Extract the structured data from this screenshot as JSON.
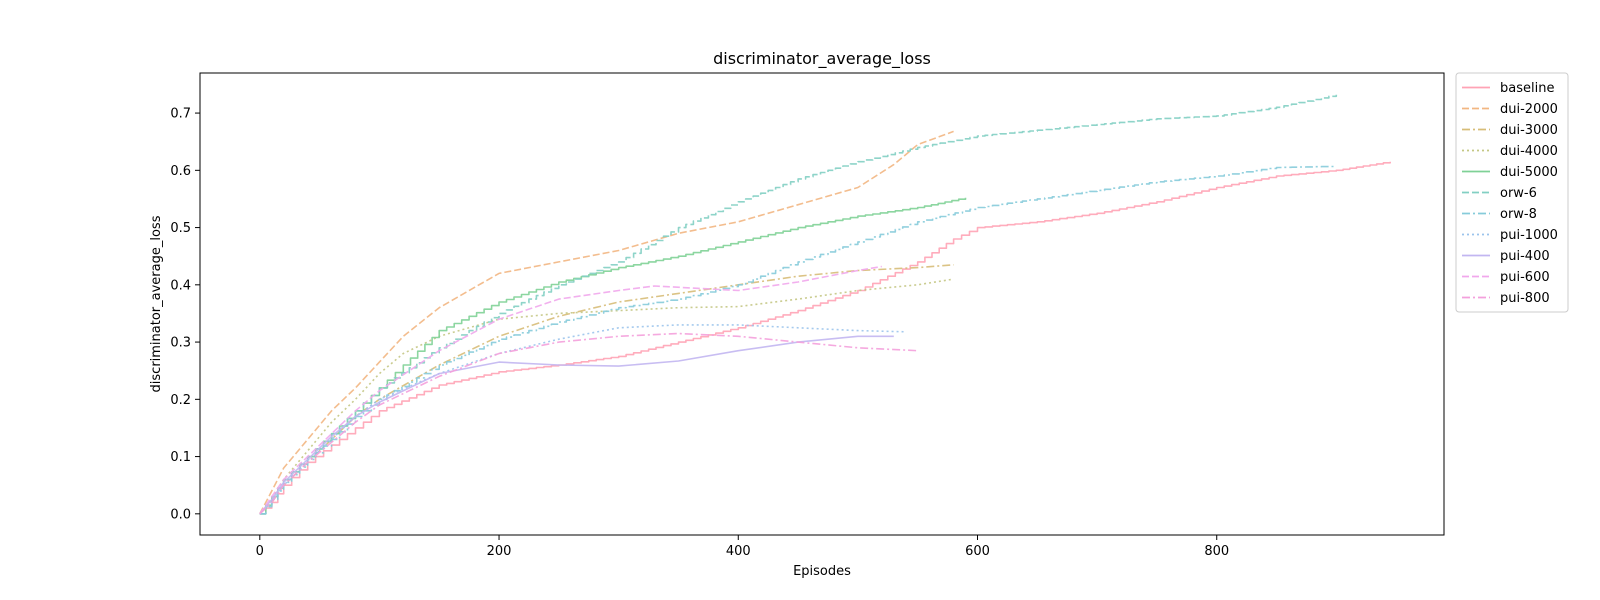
{
  "chart_data": {
    "type": "line",
    "title": "discriminator_average_loss",
    "xlabel": "Episodes",
    "ylabel": "discriminator_average_loss",
    "xlim": [
      -50,
      990
    ],
    "ylim": [
      -0.037,
      0.77
    ],
    "xticks": [
      0,
      200,
      400,
      600,
      800
    ],
    "xtick_labels": [
      "0",
      "200",
      "400",
      "600",
      "800"
    ],
    "yticks": [
      0.0,
      0.1,
      0.2,
      0.3,
      0.4,
      0.5,
      0.6,
      0.7
    ],
    "ytick_labels": [
      "0.0",
      "0.1",
      "0.2",
      "0.3",
      "0.4",
      "0.5",
      "0.6",
      "0.7"
    ],
    "grid": false,
    "legend_position": "outside-right-top",
    "series": [
      {
        "name": "baseline",
        "color": "#ffa3b5",
        "dash": "solid",
        "step": true,
        "points": [
          [
            0,
            0
          ],
          [
            10,
            0.02
          ],
          [
            20,
            0.05
          ],
          [
            40,
            0.09
          ],
          [
            60,
            0.12
          ],
          [
            80,
            0.15
          ],
          [
            100,
            0.18
          ],
          [
            150,
            0.225
          ],
          [
            200,
            0.248
          ],
          [
            250,
            0.26
          ],
          [
            300,
            0.275
          ],
          [
            350,
            0.3
          ],
          [
            400,
            0.325
          ],
          [
            450,
            0.355
          ],
          [
            500,
            0.39
          ],
          [
            550,
            0.44
          ],
          [
            580,
            0.48
          ],
          [
            600,
            0.5
          ],
          [
            650,
            0.51
          ],
          [
            700,
            0.525
          ],
          [
            750,
            0.545
          ],
          [
            800,
            0.57
          ],
          [
            850,
            0.59
          ],
          [
            900,
            0.6
          ],
          [
            945,
            0.615
          ]
        ]
      },
      {
        "name": "dui-2000",
        "color": "#f2b682",
        "dash": "dashed",
        "step": false,
        "points": [
          [
            0,
            0
          ],
          [
            10,
            0.04
          ],
          [
            20,
            0.08
          ],
          [
            40,
            0.13
          ],
          [
            60,
            0.18
          ],
          [
            80,
            0.22
          ],
          [
            100,
            0.265
          ],
          [
            120,
            0.31
          ],
          [
            150,
            0.36
          ],
          [
            200,
            0.42
          ],
          [
            250,
            0.44
          ],
          [
            300,
            0.46
          ],
          [
            350,
            0.49
          ],
          [
            400,
            0.51
          ],
          [
            450,
            0.54
          ],
          [
            500,
            0.57
          ],
          [
            530,
            0.61
          ],
          [
            550,
            0.645
          ],
          [
            580,
            0.668
          ]
        ]
      },
      {
        "name": "dui-3000",
        "color": "#d7bd78",
        "dash": "dashdot",
        "step": false,
        "points": [
          [
            0,
            0
          ],
          [
            10,
            0.02
          ],
          [
            20,
            0.05
          ],
          [
            40,
            0.09
          ],
          [
            60,
            0.13
          ],
          [
            80,
            0.17
          ],
          [
            100,
            0.2
          ],
          [
            150,
            0.26
          ],
          [
            200,
            0.31
          ],
          [
            250,
            0.345
          ],
          [
            300,
            0.37
          ],
          [
            350,
            0.385
          ],
          [
            400,
            0.4
          ],
          [
            450,
            0.415
          ],
          [
            500,
            0.425
          ],
          [
            550,
            0.43
          ],
          [
            580,
            0.435
          ]
        ]
      },
      {
        "name": "dui-4000",
        "color": "#c4c784",
        "dash": "dotted",
        "step": false,
        "points": [
          [
            0,
            0
          ],
          [
            10,
            0.025
          ],
          [
            20,
            0.06
          ],
          [
            40,
            0.11
          ],
          [
            60,
            0.16
          ],
          [
            80,
            0.2
          ],
          [
            100,
            0.245
          ],
          [
            120,
            0.28
          ],
          [
            150,
            0.31
          ],
          [
            200,
            0.34
          ],
          [
            250,
            0.35
          ],
          [
            300,
            0.355
          ],
          [
            350,
            0.36
          ],
          [
            400,
            0.362
          ],
          [
            450,
            0.375
          ],
          [
            500,
            0.39
          ],
          [
            550,
            0.4
          ],
          [
            580,
            0.41
          ]
        ]
      },
      {
        "name": "dui-5000",
        "color": "#7fd196",
        "dash": "solid",
        "step": true,
        "points": [
          [
            0,
            0
          ],
          [
            10,
            0.03
          ],
          [
            20,
            0.06
          ],
          [
            40,
            0.1
          ],
          [
            60,
            0.14
          ],
          [
            80,
            0.18
          ],
          [
            100,
            0.22
          ],
          [
            120,
            0.26
          ],
          [
            150,
            0.32
          ],
          [
            200,
            0.37
          ],
          [
            250,
            0.405
          ],
          [
            300,
            0.43
          ],
          [
            350,
            0.45
          ],
          [
            400,
            0.475
          ],
          [
            450,
            0.5
          ],
          [
            500,
            0.52
          ],
          [
            550,
            0.535
          ],
          [
            590,
            0.552
          ]
        ]
      },
      {
        "name": "orw-6",
        "color": "#82cfc3",
        "dash": "dashed",
        "step": true,
        "points": [
          [
            0,
            0
          ],
          [
            10,
            0.03
          ],
          [
            20,
            0.06
          ],
          [
            40,
            0.1
          ],
          [
            60,
            0.14
          ],
          [
            80,
            0.18
          ],
          [
            100,
            0.22
          ],
          [
            150,
            0.29
          ],
          [
            200,
            0.35
          ],
          [
            250,
            0.4
          ],
          [
            300,
            0.44
          ],
          [
            350,
            0.5
          ],
          [
            400,
            0.545
          ],
          [
            450,
            0.585
          ],
          [
            500,
            0.615
          ],
          [
            550,
            0.64
          ],
          [
            600,
            0.66
          ],
          [
            650,
            0.67
          ],
          [
            700,
            0.68
          ],
          [
            750,
            0.69
          ],
          [
            800,
            0.695
          ],
          [
            850,
            0.71
          ],
          [
            900,
            0.732
          ]
        ]
      },
      {
        "name": "orw-8",
        "color": "#86cbda",
        "dash": "dashdot",
        "step": true,
        "points": [
          [
            0,
            0
          ],
          [
            10,
            0.025
          ],
          [
            20,
            0.055
          ],
          [
            40,
            0.095
          ],
          [
            60,
            0.13
          ],
          [
            80,
            0.17
          ],
          [
            100,
            0.2
          ],
          [
            150,
            0.26
          ],
          [
            200,
            0.305
          ],
          [
            250,
            0.335
          ],
          [
            300,
            0.36
          ],
          [
            350,
            0.375
          ],
          [
            400,
            0.4
          ],
          [
            450,
            0.44
          ],
          [
            500,
            0.475
          ],
          [
            550,
            0.51
          ],
          [
            600,
            0.535
          ],
          [
            650,
            0.55
          ],
          [
            700,
            0.565
          ],
          [
            750,
            0.58
          ],
          [
            800,
            0.59
          ],
          [
            850,
            0.605
          ],
          [
            900,
            0.607
          ]
        ]
      },
      {
        "name": "pui-1000",
        "color": "#9bc4ec",
        "dash": "dotted",
        "step": false,
        "points": [
          [
            0,
            0
          ],
          [
            10,
            0.02
          ],
          [
            20,
            0.05
          ],
          [
            40,
            0.09
          ],
          [
            60,
            0.13
          ],
          [
            80,
            0.17
          ],
          [
            100,
            0.2
          ],
          [
            150,
            0.245
          ],
          [
            200,
            0.28
          ],
          [
            250,
            0.305
          ],
          [
            300,
            0.325
          ],
          [
            350,
            0.33
          ],
          [
            400,
            0.33
          ],
          [
            450,
            0.325
          ],
          [
            500,
            0.32
          ],
          [
            540,
            0.318
          ]
        ]
      },
      {
        "name": "pui-400",
        "color": "#c2b6f1",
        "dash": "solid",
        "step": false,
        "points": [
          [
            0,
            0
          ],
          [
            10,
            0.025
          ],
          [
            20,
            0.055
          ],
          [
            40,
            0.095
          ],
          [
            60,
            0.135
          ],
          [
            80,
            0.17
          ],
          [
            100,
            0.195
          ],
          [
            150,
            0.245
          ],
          [
            200,
            0.265
          ],
          [
            250,
            0.26
          ],
          [
            300,
            0.258
          ],
          [
            350,
            0.267
          ],
          [
            400,
            0.285
          ],
          [
            450,
            0.3
          ],
          [
            500,
            0.31
          ],
          [
            530,
            0.31
          ]
        ]
      },
      {
        "name": "pui-600",
        "color": "#f1a7ec",
        "dash": "dashed",
        "step": false,
        "points": [
          [
            0,
            0
          ],
          [
            10,
            0.03
          ],
          [
            20,
            0.06
          ],
          [
            40,
            0.1
          ],
          [
            60,
            0.14
          ],
          [
            80,
            0.18
          ],
          [
            100,
            0.215
          ],
          [
            150,
            0.285
          ],
          [
            200,
            0.34
          ],
          [
            250,
            0.375
          ],
          [
            300,
            0.39
          ],
          [
            330,
            0.398
          ],
          [
            400,
            0.39
          ],
          [
            450,
            0.405
          ],
          [
            500,
            0.425
          ],
          [
            520,
            0.432
          ]
        ]
      },
      {
        "name": "pui-800",
        "color": "#f4a0dc",
        "dash": "dashdot",
        "step": false,
        "points": [
          [
            0,
            0
          ],
          [
            10,
            0.02
          ],
          [
            20,
            0.05
          ],
          [
            40,
            0.09
          ],
          [
            60,
            0.125
          ],
          [
            80,
            0.16
          ],
          [
            100,
            0.19
          ],
          [
            150,
            0.24
          ],
          [
            200,
            0.28
          ],
          [
            250,
            0.3
          ],
          [
            300,
            0.31
          ],
          [
            350,
            0.315
          ],
          [
            400,
            0.31
          ],
          [
            450,
            0.3
          ],
          [
            500,
            0.29
          ],
          [
            550,
            0.285
          ]
        ]
      }
    ]
  }
}
